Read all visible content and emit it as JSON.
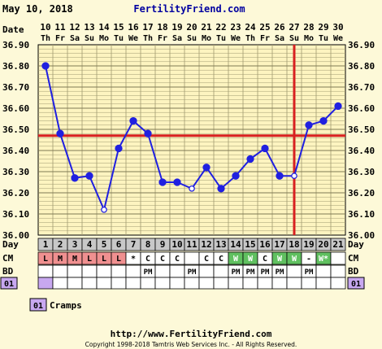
{
  "header": {
    "date": "May 10, 2018",
    "site": "FertilityFriend.com"
  },
  "footer": {
    "url": "http://www.FertilityFriend.com",
    "copyright": "Copyright 1998-2018 Tamtris Web Services Inc. - All Rights Reserved."
  },
  "legend": {
    "code": "01",
    "label": "Cramps"
  },
  "chart_data": {
    "type": "line",
    "title": "",
    "row_labels": {
      "date": "Date",
      "day": "Day",
      "cm": "CM",
      "bd": "BD",
      "symptom": "01"
    },
    "dates": [
      "10",
      "11",
      "12",
      "13",
      "14",
      "15",
      "16",
      "17",
      "18",
      "19",
      "20",
      "21",
      "22",
      "23",
      "24",
      "25",
      "26",
      "27",
      "28",
      "29",
      "30"
    ],
    "weekdays": [
      "Th",
      "Fr",
      "Sa",
      "Su",
      "Mo",
      "Tu",
      "We",
      "Th",
      "Fr",
      "Sa",
      "Su",
      "Mo",
      "Tu",
      "We",
      "Th",
      "Fr",
      "Sa",
      "Su",
      "Mo",
      "Tu",
      "We"
    ],
    "days": [
      "1",
      "2",
      "3",
      "4",
      "5",
      "6",
      "7",
      "8",
      "9",
      "10",
      "11",
      "12",
      "13",
      "14",
      "15",
      "16",
      "17",
      "18",
      "19",
      "20",
      "21"
    ],
    "temperatures": [
      36.8,
      36.48,
      36.27,
      36.28,
      36.12,
      36.41,
      36.54,
      36.48,
      36.25,
      36.25,
      36.22,
      36.32,
      36.22,
      36.28,
      36.36,
      36.41,
      36.28,
      36.28,
      36.52,
      36.54,
      36.61
    ],
    "open_points": [
      5,
      11,
      18
    ],
    "cover_line": 36.47,
    "ovulation_day": 18,
    "y_ticks": [
      "36.90",
      "36.80",
      "36.70",
      "36.60",
      "36.50",
      "36.40",
      "36.30",
      "36.20",
      "36.10",
      "36.00"
    ],
    "ylim": [
      36.0,
      36.9
    ],
    "cm": [
      "L",
      "M",
      "M",
      "L",
      "L",
      "L",
      "*",
      "C",
      "C",
      "C",
      "",
      "C",
      "C",
      "W",
      "W",
      "C",
      "W",
      "W",
      "-",
      "W*",
      ""
    ],
    "bd": [
      "",
      "",
      "",
      "",
      "",
      "",
      "",
      "PM",
      "",
      "",
      "PM",
      "",
      "",
      "PM",
      "PM",
      "PM",
      "PM",
      "",
      "PM",
      "",
      ""
    ],
    "symptom_days": [
      1
    ],
    "colors": {
      "line": "#2020e0",
      "cover": "#d82020",
      "grid": "#a09a70",
      "period_cell": "#f09090",
      "fertile_cell": "#60c060",
      "symptom_cell": "#c8a8f0",
      "day_cell": "#c8c8c8"
    }
  }
}
